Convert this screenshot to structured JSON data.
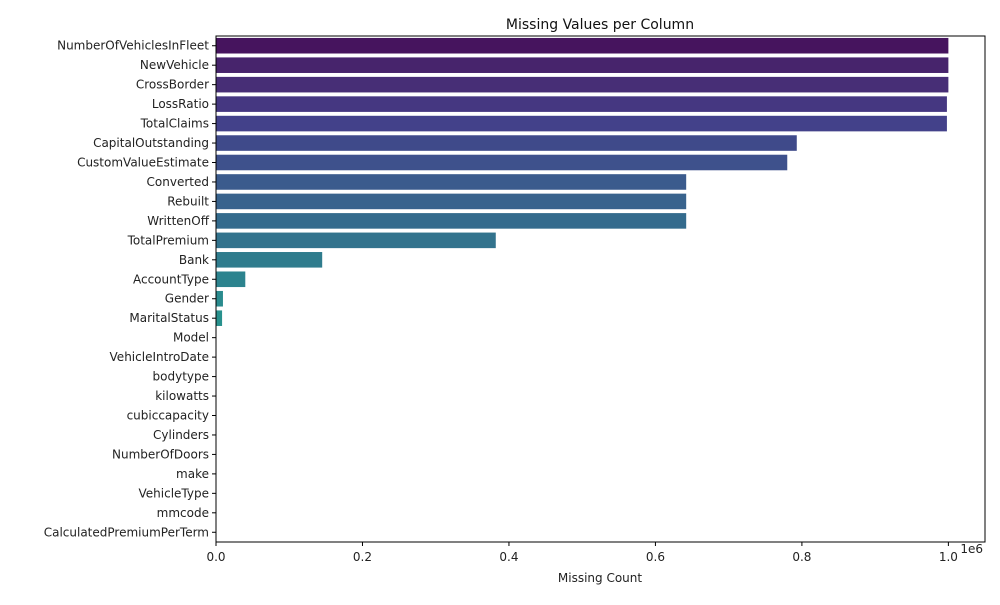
{
  "chart_data": {
    "type": "bar",
    "orientation": "horizontal",
    "title": "Missing Values per Column",
    "xlabel": "Missing Count",
    "ylabel": "",
    "x_scale_note": "1e6",
    "xlim": [
      0,
      1.05
    ],
    "x_ticks": [
      0,
      0.2,
      0.4,
      0.6,
      0.8,
      1.0
    ],
    "x_tick_labels": [
      "0.0",
      "0.2",
      "0.4",
      "0.6",
      "0.8",
      "1.0"
    ],
    "grid": false,
    "palette": "viridis",
    "categories": [
      "NumberOfVehiclesInFleet",
      "NewVehicle",
      "CrossBorder",
      "LossRatio",
      "TotalClaims",
      "CapitalOutstanding",
      "CustomValueEstimate",
      "Converted",
      "Rebuilt",
      "WrittenOff",
      "TotalPremium",
      "Bank",
      "AccountType",
      "Gender",
      "MaritalStatus",
      "Model",
      "VehicleIntroDate",
      "bodytype",
      "kilowatts",
      "cubiccapacity",
      "Cylinders",
      "NumberOfDoors",
      "make",
      "VehicleType",
      "mmcode",
      "CalculatedPremiumPerTerm"
    ],
    "values": [
      1.0,
      1.0,
      1.0,
      0.998,
      0.998,
      0.793,
      0.78,
      0.642,
      0.642,
      0.642,
      0.382,
      0.145,
      0.04,
      0.0095,
      0.0083,
      0.0006,
      0.0006,
      0.0006,
      0.0006,
      0.0006,
      0.0006,
      0.0006,
      0.0006,
      0.0006,
      0.0006,
      0.0
    ],
    "colors": [
      "#46145e",
      "#47246c",
      "#472e76",
      "#453781",
      "#43418a",
      "#3f4a8a",
      "#3e518c",
      "#3b5b8d",
      "#39638d",
      "#346b8d",
      "#33738d",
      "#2f7c8d",
      "#2c838e",
      "#2a8b8e",
      "#28918d",
      "#25998b",
      "#22a088",
      "#20a886",
      "#23b07f",
      "#30b778",
      "#45be6f",
      "#5cc564",
      "#74ca57",
      "#8dd048",
      "#a8d53a",
      "#c4da2a"
    ]
  }
}
